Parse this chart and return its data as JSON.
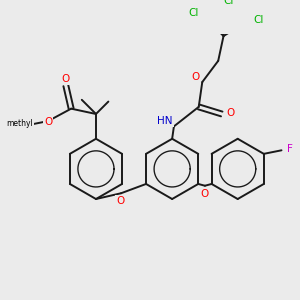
{
  "bg_color": "#ebebeb",
  "atom_colors": {
    "O": "#ff0000",
    "N": "#0000cd",
    "Cl": "#00b300",
    "F": "#cc00cc",
    "H": "#888888",
    "C": "#000000"
  },
  "bond_color": "#1a1a1a",
  "bond_width": 1.4
}
